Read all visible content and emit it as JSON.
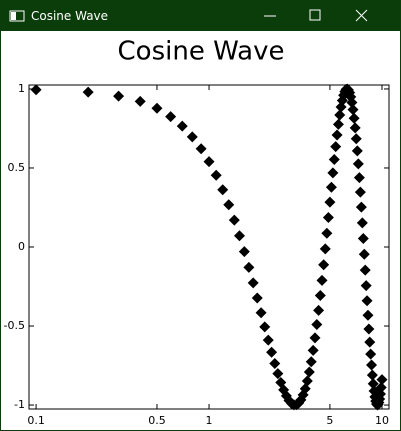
{
  "window": {
    "title": "Cosine Wave"
  },
  "chart_data": {
    "type": "scatter",
    "title": "Cosine Wave",
    "xscale": "log",
    "marker": "diamond",
    "color": "#000000",
    "xlim": [
      0.091,
      10.98
    ],
    "ylim": [
      -1.025,
      1.025
    ],
    "xticks": [
      0.1,
      0.5,
      1,
      5,
      10
    ],
    "yticks": [
      -1,
      -0.5,
      0,
      0.5,
      1
    ],
    "x": [
      0.1,
      0.2,
      0.3,
      0.4,
      0.5,
      0.6,
      0.7,
      0.8,
      0.9,
      1.0,
      1.1,
      1.2,
      1.3,
      1.4,
      1.5,
      1.6,
      1.7,
      1.8,
      1.9,
      2.0,
      2.1,
      2.2,
      2.3,
      2.4,
      2.5,
      2.6,
      2.7,
      2.8,
      2.9,
      3.0,
      3.1,
      3.2,
      3.3,
      3.4,
      3.5,
      3.6,
      3.7,
      3.8,
      3.9,
      4.0,
      4.1,
      4.2,
      4.3,
      4.4,
      4.5,
      4.6,
      4.7,
      4.8,
      4.9,
      5.0,
      5.1,
      5.2,
      5.3,
      5.4,
      5.5,
      5.6,
      5.7,
      5.8,
      5.9,
      6.0,
      6.1,
      6.2,
      6.3,
      6.4,
      6.5,
      6.6,
      6.7,
      6.8,
      6.9,
      7.0,
      7.1,
      7.2,
      7.3,
      7.4,
      7.5,
      7.6,
      7.7,
      7.8,
      7.9,
      8.0,
      8.1,
      8.2,
      8.3,
      8.4,
      8.5,
      8.6,
      8.7,
      8.8,
      8.9,
      9.0,
      9.1,
      9.2,
      9.3,
      9.4,
      9.5,
      9.6,
      9.7,
      9.8,
      9.9,
      10.0
    ],
    "values": [
      0.995,
      0.98,
      0.955,
      0.921,
      0.878,
      0.825,
      0.765,
      0.697,
      0.622,
      0.54,
      0.454,
      0.362,
      0.267,
      0.17,
      0.071,
      -0.029,
      -0.129,
      -0.227,
      -0.323,
      -0.416,
      -0.505,
      -0.589,
      -0.666,
      -0.737,
      -0.801,
      -0.857,
      -0.904,
      -0.942,
      -0.971,
      -0.99,
      -0.999,
      -0.998,
      -0.987,
      -0.967,
      -0.936,
      -0.897,
      -0.848,
      -0.791,
      -0.726,
      -0.654,
      -0.575,
      -0.49,
      -0.401,
      -0.307,
      -0.211,
      -0.112,
      -0.012,
      0.087,
      0.187,
      0.284,
      0.378,
      0.469,
      0.554,
      0.635,
      0.709,
      0.776,
      0.835,
      0.886,
      0.927,
      0.96,
      0.983,
      0.997,
      1.0,
      0.993,
      0.977,
      0.95,
      0.914,
      0.869,
      0.815,
      0.754,
      0.685,
      0.608,
      0.526,
      0.439,
      0.347,
      0.252,
      0.153,
      0.054,
      -0.046,
      -0.146,
      -0.244,
      -0.34,
      -0.432,
      -0.519,
      -0.602,
      -0.678,
      -0.747,
      -0.811,
      -0.865,
      -0.911,
      -0.948,
      -0.975,
      -0.993,
      -1.0,
      -0.997,
      -0.984,
      -0.962,
      -0.93,
      -0.889,
      -0.839
    ]
  }
}
